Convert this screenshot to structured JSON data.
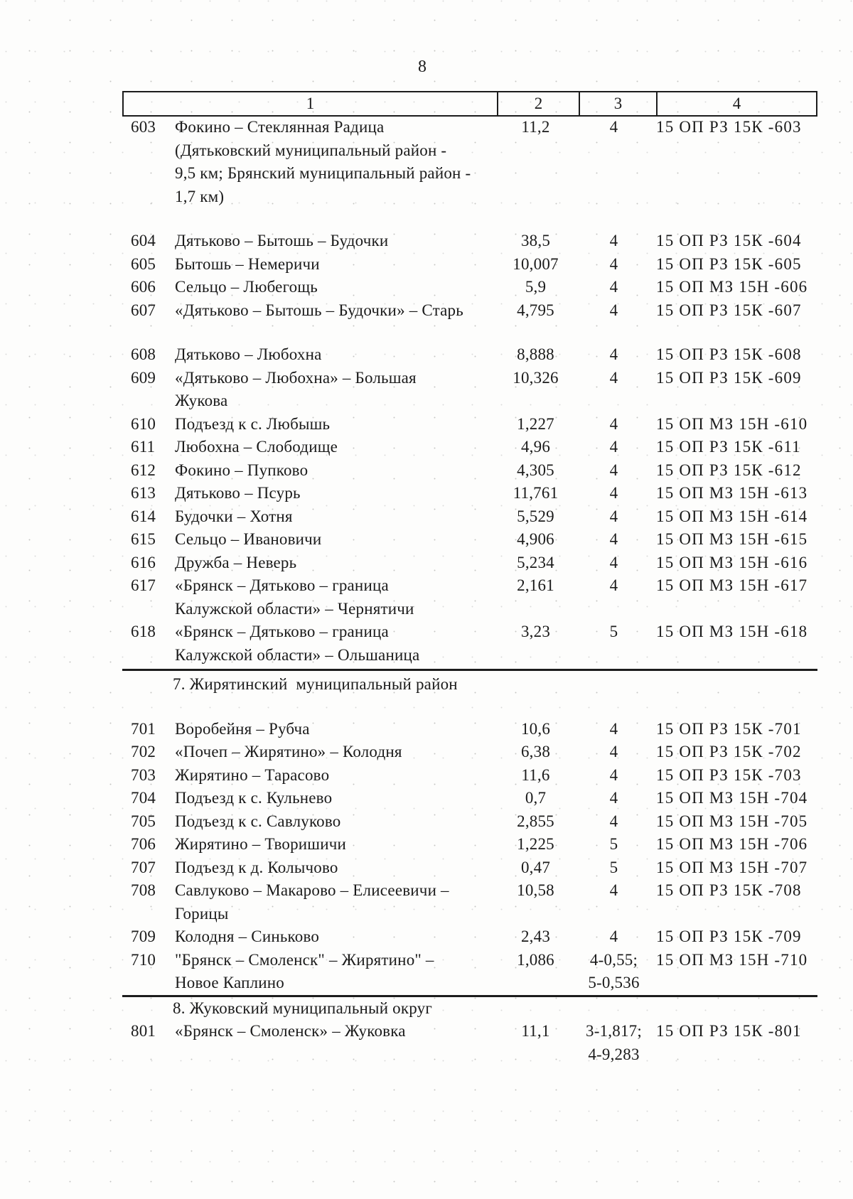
{
  "page_number": "8",
  "table": {
    "header": [
      "1",
      "2",
      "3",
      "4"
    ],
    "sections": [
      {
        "label": "7. Жирятинский  муниципальный район"
      },
      {
        "label": "8. Жуковский муниципальный округ"
      }
    ],
    "rows": [
      {
        "num": "603",
        "name": "Фокино – Стеклянная Радица\n(Дятьковский муниципальный район -\n9,5 км; Брянский муниципальный район -\n1,7 км)",
        "length_km": "11,2",
        "category": "4",
        "id_number": "15 ОП РЗ 15К -603"
      },
      {
        "num": "604",
        "name": "Дятьково – Бытошь – Будочки",
        "length_km": "38,5",
        "category": "4",
        "id_number": "15 ОП РЗ 15К -604"
      },
      {
        "num": "605",
        "name": "Бытошь – Немеричи",
        "length_km": "10,007",
        "category": "4",
        "id_number": "15 ОП РЗ 15К -605"
      },
      {
        "num": "606",
        "name": "Сельцо – Любегощь",
        "length_km": "5,9",
        "category": "4",
        "id_number": "15 ОП МЗ 15Н -606"
      },
      {
        "num": "607",
        "name": "«Дятьково – Бытошь – Будочки» – Старь",
        "length_km": "4,795",
        "category": "4",
        "id_number": "15 ОП РЗ 15К -607"
      },
      {
        "num": "608",
        "name": "Дятьково – Любохна",
        "length_km": "8,888",
        "category": "4",
        "id_number": "15 ОП РЗ 15К -608"
      },
      {
        "num": "609",
        "name": "«Дятьково – Любохна» – Большая\nЖукова",
        "length_km": "10,326",
        "category": "4",
        "id_number": "15 ОП РЗ 15К -609"
      },
      {
        "num": "610",
        "name": "Подъезд к с. Любышь",
        "length_km": "1,227",
        "category": "4",
        "id_number": "15 ОП МЗ 15Н -610"
      },
      {
        "num": "611",
        "name": "Любохна – Слободище",
        "length_km": "4,96",
        "category": "4",
        "id_number": "15 ОП РЗ 15К -611"
      },
      {
        "num": "612",
        "name": "Фокино – Пупково",
        "length_km": "4,305",
        "category": "4",
        "id_number": "15 ОП РЗ 15К -612"
      },
      {
        "num": "613",
        "name": "Дятьково – Псурь",
        "length_km": "11,761",
        "category": "4",
        "id_number": "15 ОП МЗ 15Н -613"
      },
      {
        "num": "614",
        "name": "Будочки – Хотня",
        "length_km": "5,529",
        "category": "4",
        "id_number": "15 ОП МЗ 15Н -614"
      },
      {
        "num": "615",
        "name": "Сельцо – Ивановичи",
        "length_km": "4,906",
        "category": "4",
        "id_number": "15 ОП МЗ 15Н -615"
      },
      {
        "num": "616",
        "name": "Дружба – Неверь",
        "length_km": "5,234",
        "category": "4",
        "id_number": "15 ОП МЗ 15Н -616"
      },
      {
        "num": "617",
        "name": "«Брянск – Дятьково – граница\nКалужской области» – Чернятичи",
        "length_km": "2,161",
        "category": "4",
        "id_number": "15 ОП МЗ 15Н -617"
      },
      {
        "num": "618",
        "name": "«Брянск – Дятьково – граница\nКалужской области» – Ольшаница",
        "length_km": "3,23",
        "category": "5",
        "id_number": "15 ОП МЗ 15Н -618"
      },
      {
        "num": "701",
        "name": "Воробейня – Рубча",
        "length_km": "10,6",
        "category": "4",
        "id_number": "15 ОП РЗ 15К -701"
      },
      {
        "num": "702",
        "name": "«Почеп – Жирятино» – Колодня",
        "length_km": "6,38",
        "category": "4",
        "id_number": "15 ОП РЗ 15К -702"
      },
      {
        "num": "703",
        "name": "Жирятино – Тарасово",
        "length_km": "11,6",
        "category": "4",
        "id_number": "15 ОП РЗ 15К -703"
      },
      {
        "num": "704",
        "name": "Подъезд к с. Кульнево",
        "length_km": "0,7",
        "category": "4",
        "id_number": "15 ОП МЗ 15Н -704"
      },
      {
        "num": "705",
        "name": "Подъезд к с. Савлуково",
        "length_km": "2,855",
        "category": "4",
        "id_number": "15 ОП МЗ 15Н -705"
      },
      {
        "num": "706",
        "name": "Жирятино – Творишичи",
        "length_km": "1,225",
        "category": "5",
        "id_number": "15 ОП МЗ 15Н -706"
      },
      {
        "num": "707",
        "name": "Подъезд к д. Колычово",
        "length_km": "0,47",
        "category": "5",
        "id_number": "15 ОП МЗ 15Н -707"
      },
      {
        "num": "708",
        "name": "Савлуково – Макарово – Елисеевичи –\nГорицы",
        "length_km": "10,58",
        "category": "4",
        "id_number": "15 ОП РЗ 15К -708"
      },
      {
        "num": "709",
        "name": "Колодня – Синьково",
        "length_km": "2,43",
        "category": "4",
        "id_number": "15 ОП РЗ 15К -709"
      },
      {
        "num": "710",
        "name": "\"Брянск – Смоленск\" – Жирятино\" –\nНовое Каплино",
        "length_km": "1,086",
        "category": "4-0,55;\n5-0,536",
        "id_number": "15 ОП МЗ 15Н -710"
      },
      {
        "num": "801",
        "name": "«Брянск – Смоленск» – Жуковка",
        "length_km": "11,1",
        "category": "3-1,817;\n4-9,283",
        "id_number": "15 ОП РЗ 15К -801"
      }
    ]
  }
}
